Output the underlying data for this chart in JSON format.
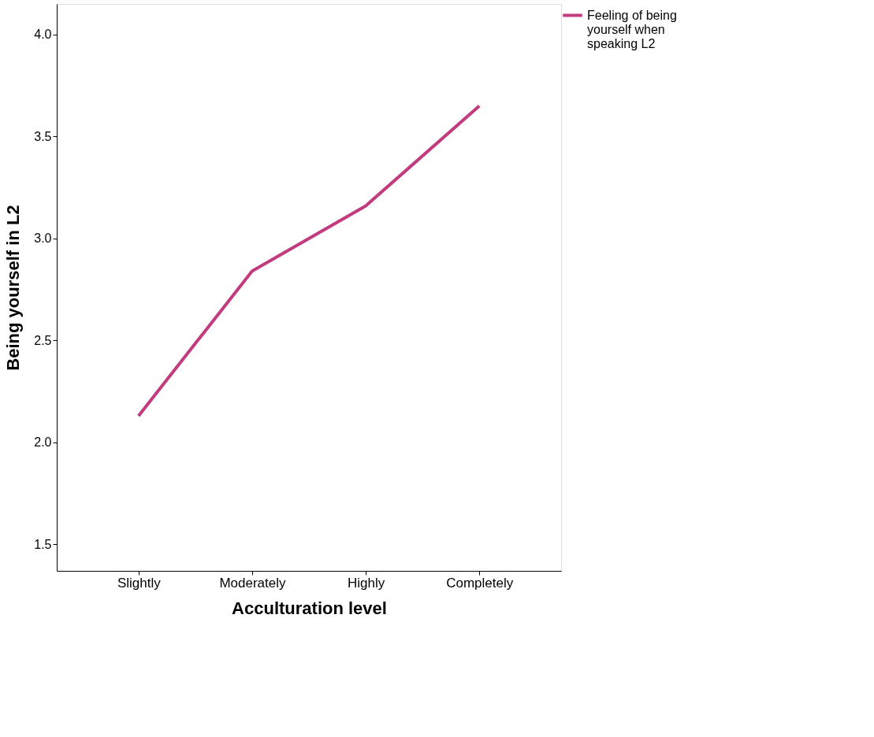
{
  "chart_data": {
    "type": "line",
    "xlabel": "Acculturation level",
    "ylabel": "Being yourself in L2",
    "categories": [
      "Slightly",
      "Moderately",
      "Highly",
      "Completely"
    ],
    "series": [
      {
        "name": "Feeling of being yourself when speaking L2",
        "color": "#c13b7e",
        "values": [
          2.13,
          2.84,
          3.16,
          3.65
        ]
      }
    ],
    "ylim": [
      1.37,
      4.15
    ],
    "yticks": [
      {
        "value": 1.5,
        "label": "1.5"
      },
      {
        "value": 2.0,
        "label": "2.0"
      },
      {
        "value": 2.5,
        "label": "2.5"
      },
      {
        "value": 3.0,
        "label": "3.0"
      },
      {
        "value": 3.5,
        "label": "3.5"
      },
      {
        "value": 4.0,
        "label": "4.0"
      }
    ],
    "grid": false,
    "legend": "top right",
    "marker": "none",
    "line_style": "solid"
  }
}
